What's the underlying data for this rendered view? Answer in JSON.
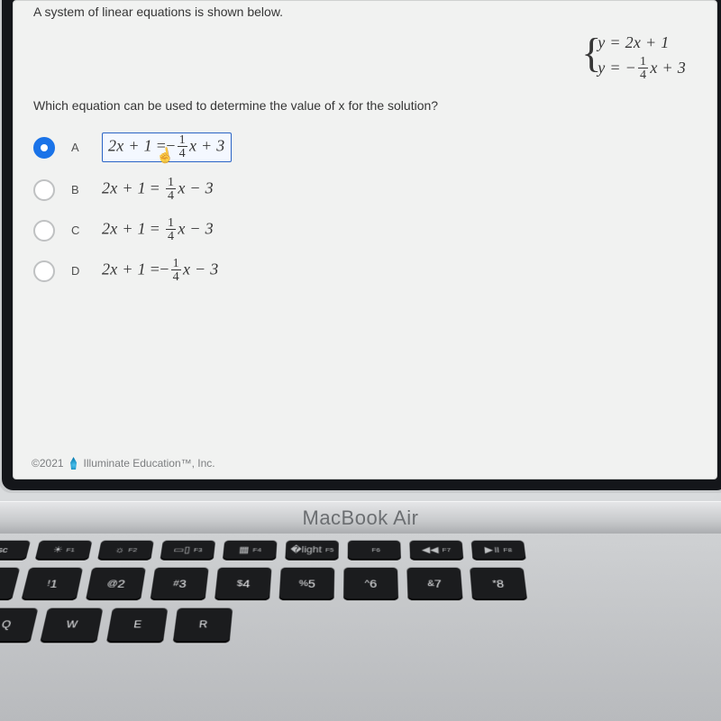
{
  "device_label": "MacBook Air",
  "question": {
    "stem": "A system of linear equations is shown below.",
    "system": {
      "line1": "y = 2x + 1",
      "line2_prefix": "y = −",
      "line2_frac_num": "1",
      "line2_frac_den": "4",
      "line2_suffix": "x + 3"
    },
    "prompt": "Which equation can be used to determine the value of x for the solution?"
  },
  "options": [
    {
      "tag": "A",
      "selected": true,
      "lhs": "2x + 1",
      "op": "=−",
      "frac_num": "1",
      "frac_den": "4",
      "rhs": "x + 3"
    },
    {
      "tag": "B",
      "selected": false,
      "lhs": "2x + 1",
      "op": "= ",
      "frac_num": "1",
      "frac_den": "4",
      "rhs": "x − 3"
    },
    {
      "tag": "C",
      "selected": false,
      "lhs": "2x + 1",
      "op": "= ",
      "frac_num": "1",
      "frac_den": "4",
      "rhs": "x − 3"
    },
    {
      "tag": "D",
      "selected": false,
      "lhs": "2x + 1",
      "op": "=−",
      "frac_num": "1",
      "frac_den": "4",
      "rhs": "x − 3"
    }
  ],
  "footer": {
    "copyright": "©2021",
    "brand": "Illuminate Education™, Inc."
  },
  "keyboard": {
    "fn_row": [
      {
        "label": "esc",
        "cls": "esc"
      },
      {
        "label": "☀︎",
        "sub": "F1"
      },
      {
        "label": "☼",
        "sub": "F2"
      },
      {
        "label": "▭▯",
        "sub": "F3"
      },
      {
        "label": "▦",
        "sub": "F4"
      },
      {
        "label": "�light",
        "sub": "F5"
      },
      {
        "label": "",
        "sub": "F6"
      },
      {
        "label": "◀◀",
        "sub": "F7"
      },
      {
        "label": "▶॥",
        "sub": "F8"
      }
    ],
    "num_row": [
      {
        "top": "~",
        "bot": "`"
      },
      {
        "top": "!",
        "bot": "1"
      },
      {
        "top": "@",
        "bot": "2"
      },
      {
        "top": "#",
        "bot": "3"
      },
      {
        "top": "$",
        "bot": "4"
      },
      {
        "top": "%",
        "bot": "5"
      },
      {
        "top": "^",
        "bot": "6"
      },
      {
        "top": "&",
        "bot": "7"
      },
      {
        "top": "*",
        "bot": "8"
      }
    ],
    "letter_row": [
      "Q",
      "W",
      "E",
      "R"
    ]
  },
  "style": {
    "accent": "#1a73e8",
    "selection_border": "#2a64c5",
    "screen_bg": "#f1f2f1",
    "text": "#363636",
    "muted": "#7c7e80",
    "eqn_font": "Latin Modern, Cambria Math, Georgia, serif"
  }
}
